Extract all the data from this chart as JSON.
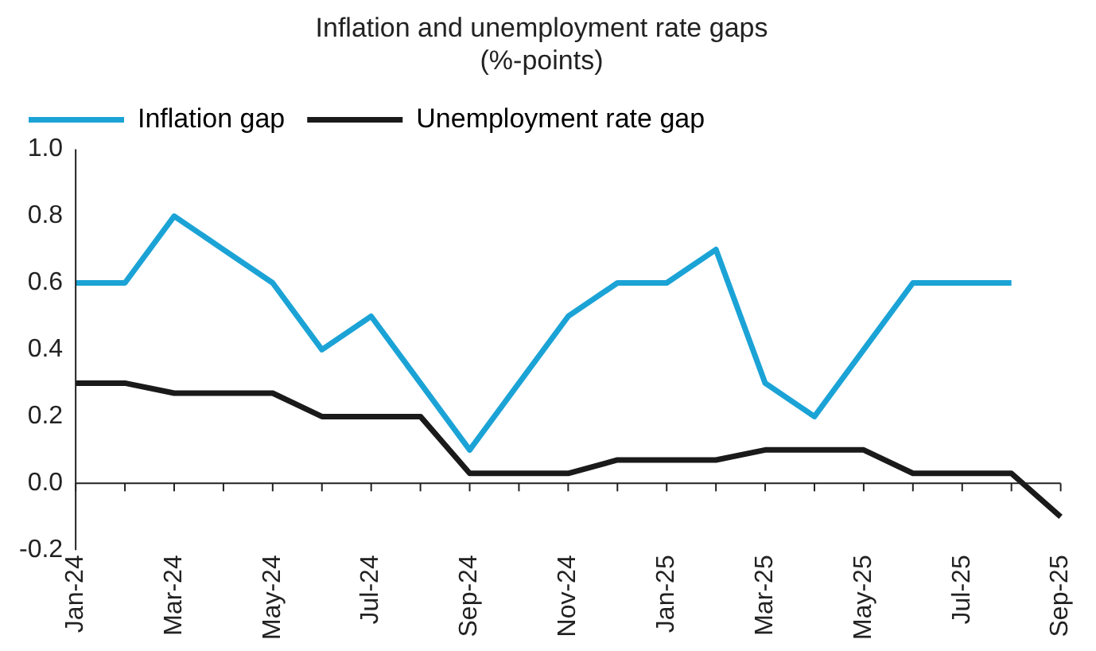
{
  "chart_data": {
    "type": "line",
    "title": "Inflation and unemployment rate gaps",
    "subtitle": "(%-points)",
    "categories": [
      "Jan-24",
      null,
      "Mar-24",
      null,
      "May-24",
      null,
      "Jul-24",
      null,
      "Sep-24",
      null,
      "Nov-24",
      null,
      "Jan-25",
      null,
      "Mar-25",
      null,
      "May-25",
      null,
      "Jul-25",
      null,
      "Sep-25"
    ],
    "series": [
      {
        "name": "Inflation gap",
        "color": "#1ba3d6",
        "values": [
          0.6,
          0.6,
          0.8,
          0.7,
          0.6,
          0.4,
          0.5,
          0.3,
          0.1,
          0.3,
          0.5,
          0.6,
          0.6,
          0.7,
          0.3,
          0.2,
          0.4,
          0.6,
          0.6,
          0.6,
          null
        ]
      },
      {
        "name": "Unemployment rate gap",
        "color": "#1a1a1a",
        "values": [
          0.3,
          0.3,
          0.27,
          0.27,
          0.27,
          0.2,
          0.2,
          0.2,
          0.03,
          0.03,
          0.03,
          0.07,
          0.07,
          0.07,
          0.1,
          0.1,
          0.1,
          0.03,
          0.03,
          0.03,
          -0.1
        ]
      }
    ],
    "ylim": [
      -0.2,
      1.0
    ],
    "yticks": [
      {
        "value": 1.0,
        "label": "1.0"
      },
      0.8,
      0.6,
      0.4,
      0.2,
      {
        "value": 0,
        "label": "0.0"
      },
      -0.2
    ],
    "legend": "top left",
    "marker": "none",
    "line_style": "solid"
  }
}
